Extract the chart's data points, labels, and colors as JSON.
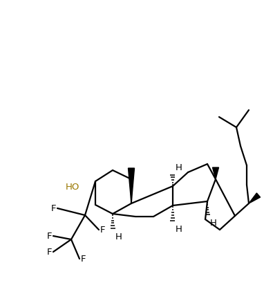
{
  "bg_color": "#ffffff",
  "line_color": "#000000",
  "ho_color": "#997700",
  "lw": 1.6,
  "figsize": [
    3.82,
    4.1
  ],
  "dpi": 100,
  "xlim": [
    0,
    382
  ],
  "ylim": [
    0,
    410
  ]
}
